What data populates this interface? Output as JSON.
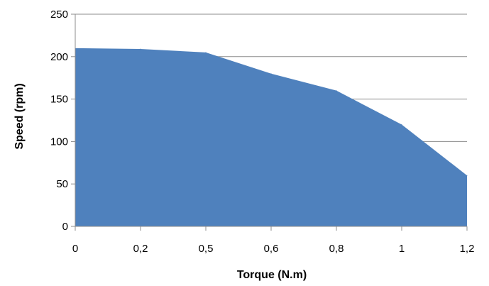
{
  "chart_data": {
    "type": "area",
    "xlabel": "Torque (N.m)",
    "ylabel": "Speed (rpm)",
    "categories": [
      "0",
      "0,2",
      "0,5",
      "0,6",
      "0,8",
      "1",
      "1,2"
    ],
    "values": [
      210,
      209,
      205,
      180,
      160,
      120,
      60
    ],
    "ylim": [
      0,
      250
    ],
    "yticks": [
      "0",
      "50",
      "100",
      "150",
      "200",
      "250"
    ],
    "grid": "horizontal",
    "legend": "none",
    "colors": {
      "area": "#4f81bd",
      "grid": "#8c8c8c",
      "axis": "#8c8c8c"
    }
  }
}
